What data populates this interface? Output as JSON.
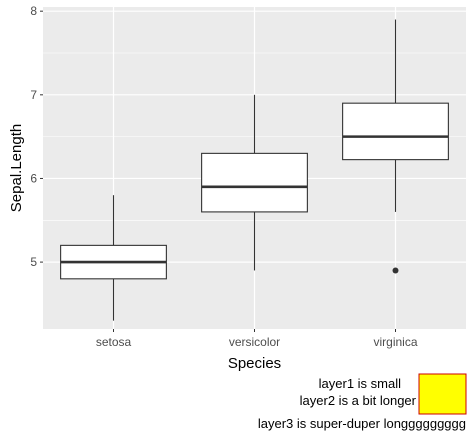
{
  "chart_data": {
    "type": "boxplot",
    "xlabel": "Species",
    "ylabel": "Sepal.Length",
    "categories": [
      "setosa",
      "versicolor",
      "virginica"
    ],
    "ylim": [
      4.2,
      8.05
    ],
    "yticks": [
      5,
      6,
      7,
      8
    ],
    "grid": true,
    "boxes": [
      {
        "category": "setosa",
        "whisker_low": 4.3,
        "q1": 4.8,
        "median": 5.0,
        "q3": 5.2,
        "whisker_high": 5.8,
        "outliers": []
      },
      {
        "category": "versicolor",
        "whisker_low": 4.9,
        "q1": 5.6,
        "median": 5.9,
        "q3": 6.3,
        "whisker_high": 7.0,
        "outliers": []
      },
      {
        "category": "virginica",
        "whisker_low": 5.6,
        "q1": 6.225,
        "median": 6.5,
        "q3": 6.9,
        "whisker_high": 7.9,
        "outliers": [
          4.9
        ]
      }
    ],
    "colors": {
      "panel": "#ebebeb",
      "grid": "#ffffff",
      "box_fill": "#ffffff",
      "box_line": "#333333",
      "key_fill": "#ffff00",
      "key_border": "#cc0000"
    }
  },
  "caption": {
    "lines": [
      "layer1 is small",
      "layer2 is a bit longer",
      "layer3 is super-duper longgggggggg"
    ]
  }
}
